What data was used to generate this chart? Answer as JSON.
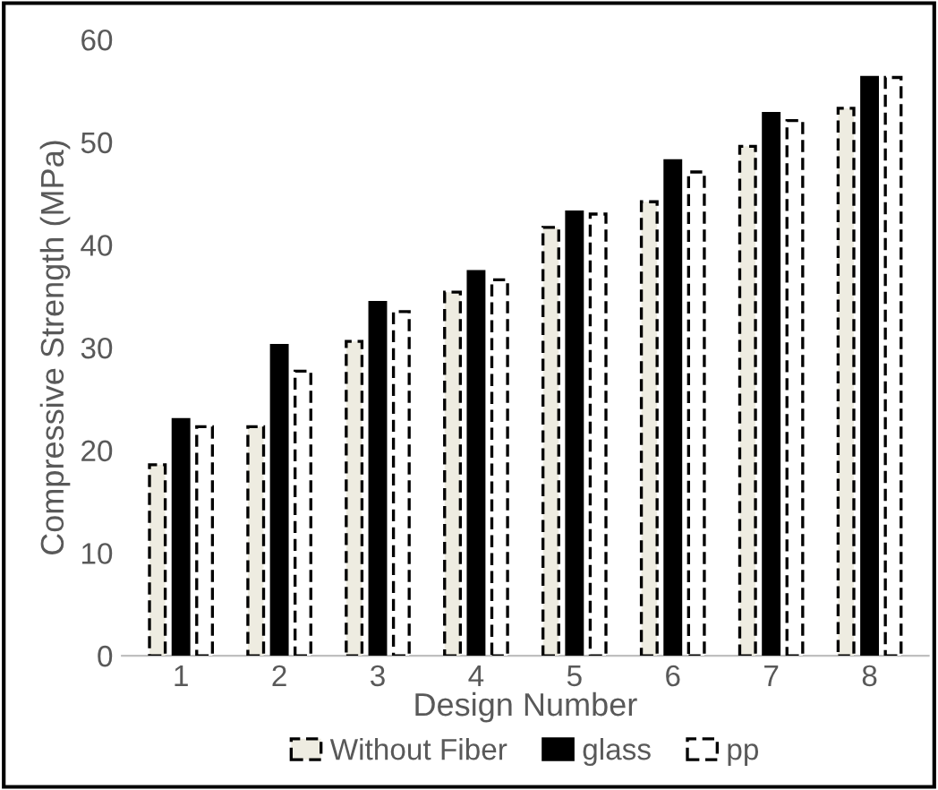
{
  "chart_data": {
    "type": "bar",
    "xlabel": "Design Number",
    "ylabel": "Compressive Strength (MPa)",
    "categories": [
      "1",
      "2",
      "3",
      "4",
      "5",
      "6",
      "7",
      "8"
    ],
    "series": [
      {
        "name": "Without Fiber",
        "color": "#eeece1",
        "line_style": "dashed",
        "values": [
          18.6,
          22.3,
          30.6,
          35.4,
          41.7,
          44.2,
          49.6,
          53.3
        ]
      },
      {
        "name": "glass",
        "color": "#000000",
        "line_style": "solid",
        "values": [
          23.0,
          30.2,
          34.4,
          37.4,
          43.2,
          48.2,
          52.8,
          56.3
        ]
      },
      {
        "name": "pp",
        "color": "#ffffff",
        "line_style": "dashed",
        "values": [
          22.3,
          27.7,
          33.5,
          36.6,
          43.0,
          47.1,
          52.1,
          56.3
        ]
      }
    ],
    "ylim": [
      0,
      60
    ],
    "yticks": [
      0,
      10,
      20,
      30,
      40,
      50,
      60
    ],
    "grid": false,
    "legend": "bottom"
  }
}
